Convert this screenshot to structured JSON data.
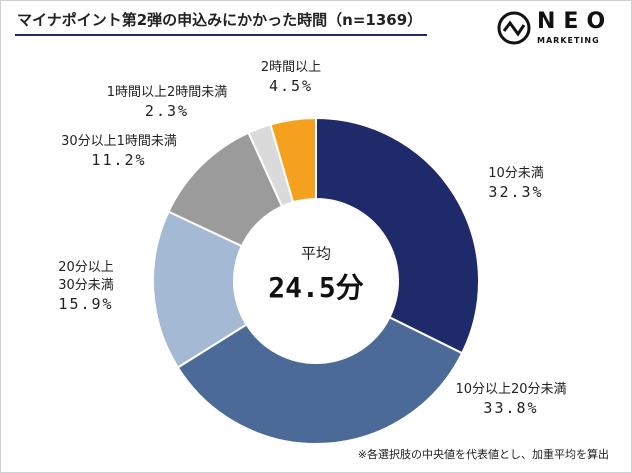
{
  "chart_data": {
    "type": "donut",
    "title": "マイナポイント第2弾の申込みにかかった時間（n=1369）",
    "logo": {
      "main": "NEO",
      "sub": "MARKETING"
    },
    "center_label": "平均",
    "center_value": "24.5分",
    "categories": [
      "10分未満",
      "10分以上20分未満",
      "20分以上\n30分未満",
      "30分以上1時間未満",
      "1時間以上2時間未満",
      "2時間以上"
    ],
    "values": [
      32.3,
      33.8,
      15.9,
      11.2,
      2.3,
      4.5
    ],
    "value_labels": [
      "32.3%",
      "33.8%",
      "15.9%",
      "11.2%",
      "2.3%",
      "4.5%"
    ],
    "colors": [
      "#1f2a6b",
      "#4b6a98",
      "#a4b9d4",
      "#9b9b9b",
      "#dadada",
      "#f5a11f"
    ],
    "footnote": "※各選択肢の中央値を代表値とし、加重平均を算出"
  }
}
